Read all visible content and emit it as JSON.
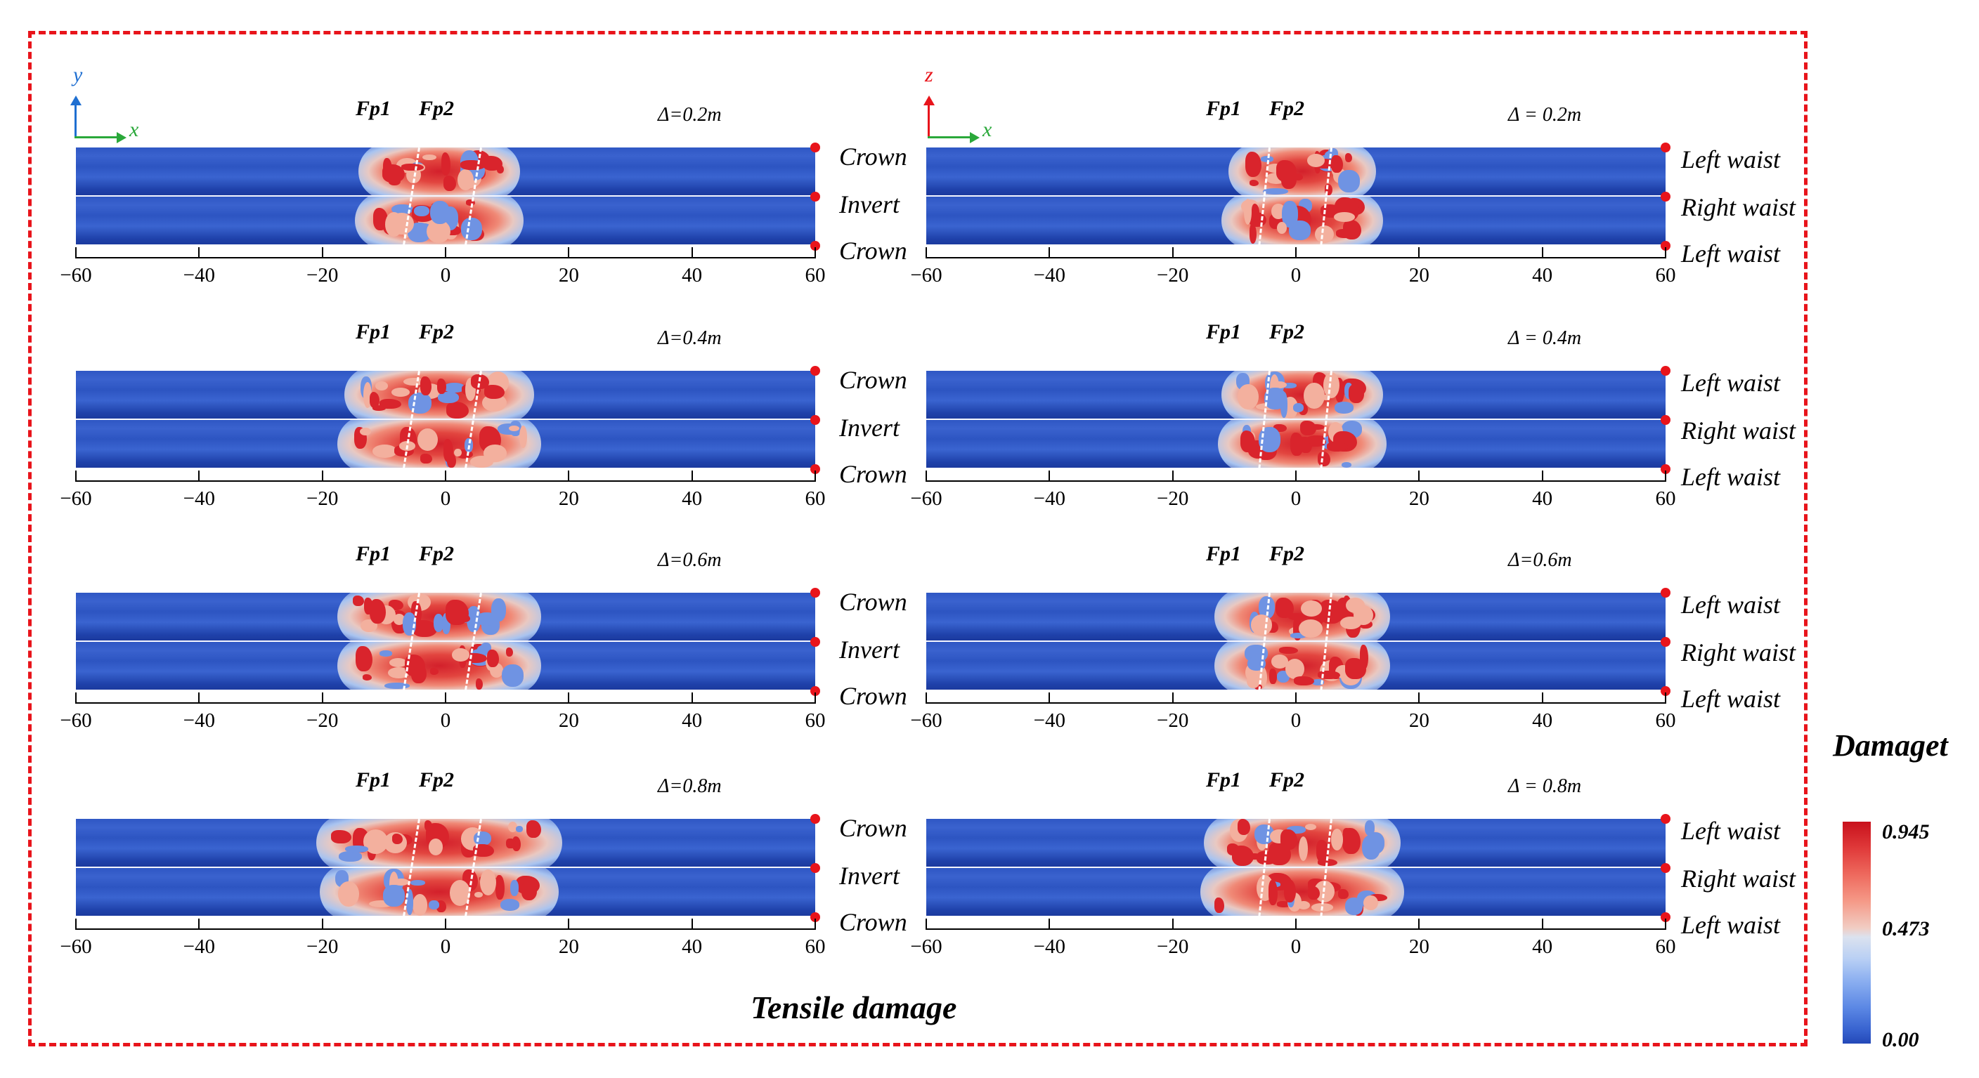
{
  "figure_title": "Tensile damage",
  "colorbar": {
    "title": "Damaget",
    "max_label": "0.945",
    "mid_label": "0.473",
    "min_label": "0.00",
    "high_color": "#c8111c",
    "low_color": "#2448b8"
  },
  "axes_left": {
    "vertical": "y",
    "horizontal": "x",
    "vertical_color": "#1f6fd1",
    "horizontal_color": "#2aa83a"
  },
  "axes_right": {
    "vertical": "z",
    "horizontal": "x",
    "vertical_color": "#e8141b",
    "horizontal_color": "#2aa83a"
  },
  "fault_labels": {
    "fp1": "Fp1",
    "fp2": "Fp2"
  },
  "tick_labels": [
    "−60",
    "−40",
    "−20",
    "0",
    "20",
    "40",
    "60"
  ],
  "tick_values": [
    -60,
    -40,
    -20,
    0,
    20,
    40,
    60
  ],
  "left_panels": [
    {
      "delta": "Δ=0.2m",
      "labels": [
        "Crown",
        "Invert",
        "Crown"
      ]
    },
    {
      "delta": "Δ=0.4m",
      "labels": [
        "Crown",
        "Invert",
        "Crown"
      ]
    },
    {
      "delta": "Δ=0.6m",
      "labels": [
        "Crown",
        "Invert",
        "Crown"
      ]
    },
    {
      "delta": "Δ=0.8m",
      "labels": [
        "Crown",
        "Invert",
        "Crown"
      ]
    }
  ],
  "right_panels": [
    {
      "delta": "Δ = 0.2m",
      "labels": [
        "Left waist",
        "Right waist",
        "Left waist"
      ]
    },
    {
      "delta": "Δ = 0.4m",
      "labels": [
        "Left waist",
        "Right waist",
        "Left waist"
      ]
    },
    {
      "delta": "Δ=0.6m",
      "labels": [
        "Left waist",
        "Right waist",
        "Left waist"
      ]
    },
    {
      "delta": "Δ = 0.8m",
      "labels": [
        "Left waist",
        "Right waist",
        "Left waist"
      ]
    }
  ]
}
